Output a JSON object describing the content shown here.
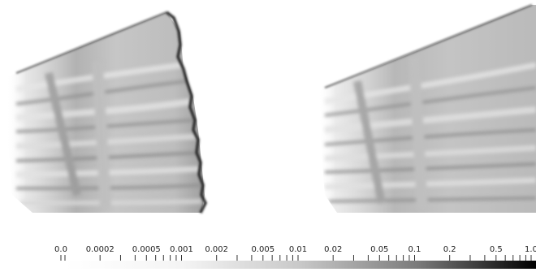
{
  "colorbar": {
    "labels": [
      "0.0",
      "0.0002",
      "0.0005",
      "0.001",
      "0.002",
      "0.005",
      "0.01",
      "0.02",
      "0.05",
      "0.1",
      "0.2",
      "0.5",
      "1.0"
    ],
    "scale": "log",
    "colors": {
      "low": "#ffffff",
      "high": "#000000"
    }
  }
}
